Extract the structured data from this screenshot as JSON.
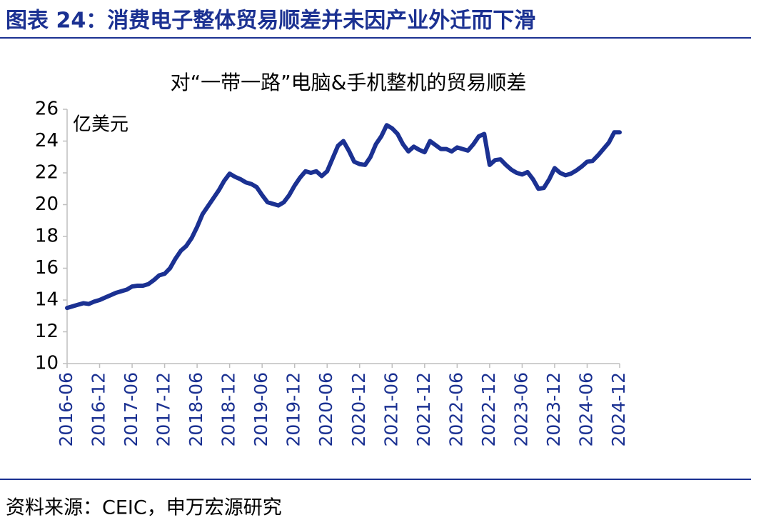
{
  "header": {
    "title": "图表 24：消费电子整体贸易顺差并未因产业外迁而下滑"
  },
  "chart_data": {
    "type": "line",
    "title": "对“一带一路”电脑&手机整机的贸易顺差",
    "y_label": "亿美元",
    "categories": [
      "2016-06",
      null,
      null,
      null,
      null,
      null,
      "2016-12",
      null,
      null,
      null,
      null,
      null,
      "2017-06",
      null,
      null,
      null,
      null,
      null,
      "2017-12",
      null,
      null,
      null,
      null,
      null,
      "2018-06",
      null,
      null,
      null,
      null,
      null,
      "2018-12",
      null,
      null,
      null,
      null,
      null,
      "2019-06",
      null,
      null,
      null,
      null,
      null,
      "2019-12",
      null,
      null,
      null,
      null,
      null,
      "2020-06",
      null,
      null,
      null,
      null,
      null,
      "2020-12",
      null,
      null,
      null,
      null,
      null,
      "2021-06",
      null,
      null,
      null,
      null,
      null,
      "2021-12",
      null,
      null,
      null,
      null,
      null,
      "2022-06",
      null,
      null,
      null,
      null,
      null,
      "2022-12",
      null,
      null,
      null,
      null,
      null,
      "2023-06",
      null,
      null,
      null,
      null,
      null,
      "2023-12",
      null,
      null,
      null,
      null,
      null,
      "2024-06",
      null,
      null,
      null,
      null,
      null,
      "2024-12"
    ],
    "series": [
      {
        "color": "#1b3192",
        "values": [
          13.5,
          13.6,
          13.7,
          13.8,
          13.75,
          13.9,
          14.0,
          14.15,
          14.3,
          14.45,
          14.55,
          14.65,
          14.85,
          14.9,
          14.9,
          15.0,
          15.25,
          15.55,
          15.65,
          16.0,
          16.6,
          17.1,
          17.4,
          17.9,
          18.6,
          19.4,
          19.9,
          20.4,
          20.9,
          21.5,
          21.95,
          21.75,
          21.6,
          21.4,
          21.3,
          21.1,
          20.6,
          20.15,
          20.05,
          19.95,
          20.15,
          20.6,
          21.2,
          21.7,
          22.1,
          22.0,
          22.1,
          21.8,
          22.1,
          22.9,
          23.7,
          24.0,
          23.4,
          22.7,
          22.55,
          22.5,
          23.0,
          23.8,
          24.3,
          25.0,
          24.8,
          24.45,
          23.8,
          23.35,
          23.65,
          23.45,
          23.3,
          24.0,
          23.75,
          23.5,
          23.5,
          23.35,
          23.6,
          23.5,
          23.4,
          23.8,
          24.3,
          24.45,
          22.5,
          22.8,
          22.85,
          22.5,
          22.2,
          22.0,
          21.9,
          22.05,
          21.6,
          21.0,
          21.05,
          21.6,
          22.3,
          22.0,
          21.85,
          21.95,
          22.15,
          22.4,
          22.7,
          22.75,
          23.1,
          23.5,
          23.9,
          24.55,
          24.55
        ]
      }
    ],
    "ylim": [
      10,
      26
    ],
    "yticks": [
      10,
      12,
      14,
      16,
      18,
      20,
      22,
      24,
      26
    ]
  },
  "footer": {
    "source": "资料来源：CEIC，申万宏源研究"
  }
}
